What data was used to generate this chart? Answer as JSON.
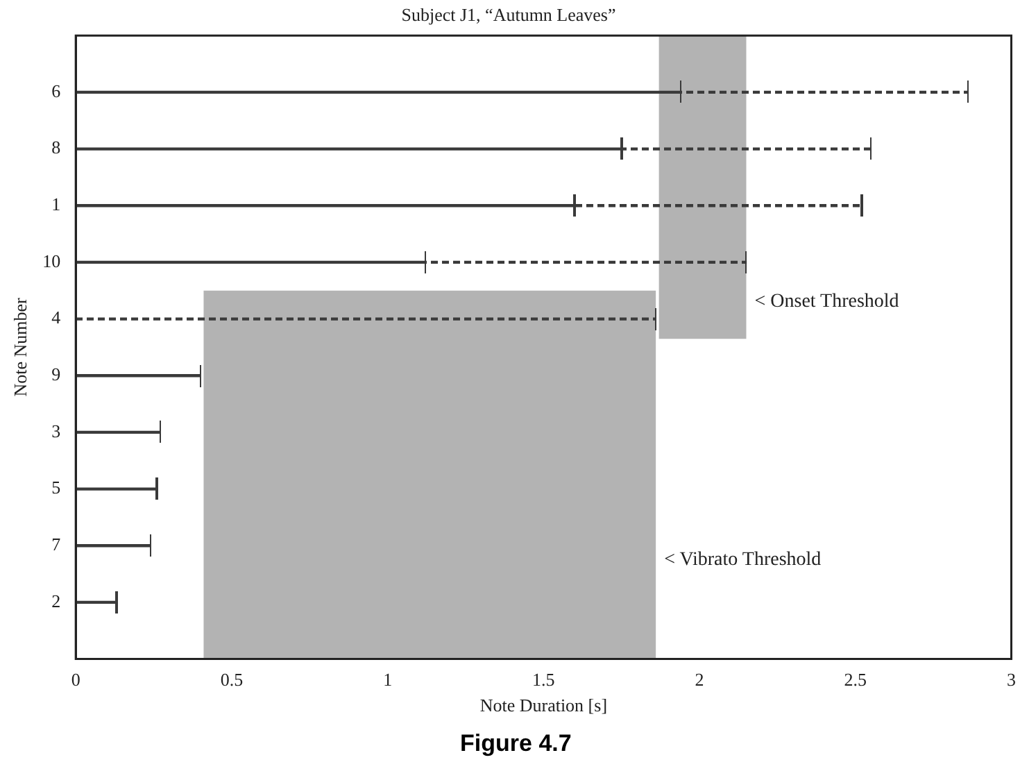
{
  "chart_data": {
    "type": "bar",
    "orientation": "horizontal",
    "stacked": true,
    "title": "Subject J1, “Autumn Leaves”",
    "xlabel": "Note Duration [s]",
    "ylabel": "Note Number",
    "categories": [
      "6",
      "8",
      "1",
      "10",
      "4",
      "9",
      "3",
      "5",
      "7",
      "2"
    ],
    "series": [
      {
        "color": "#3a3a3a",
        "line_style": "solid",
        "values": [
          1.94,
          1.75,
          1.6,
          1.12,
          null,
          0.4,
          0.27,
          0.26,
          0.24,
          0.13
        ]
      },
      {
        "color": "#3a3a3a",
        "line_style": "dashed",
        "values": [
          0.92,
          0.8,
          0.92,
          1.03,
          1.86,
          null,
          null,
          null,
          null,
          null
        ]
      }
    ],
    "xlim": [
      0,
      3
    ],
    "xticks": [
      0,
      0.5,
      1,
      1.5,
      2,
      2.5,
      3
    ],
    "bands": [
      {
        "axis": "x",
        "from": 1.87,
        "to": 2.15,
        "label": "< Onset Threshold",
        "color": "#b3b3b3"
      },
      {
        "axis": "x",
        "from": 0.41,
        "to": 1.86,
        "label": "< Vibrato Threshold",
        "color": "#b3b3b3"
      }
    ],
    "annotations": [
      "Figure 4.7"
    ],
    "legend": false
  }
}
